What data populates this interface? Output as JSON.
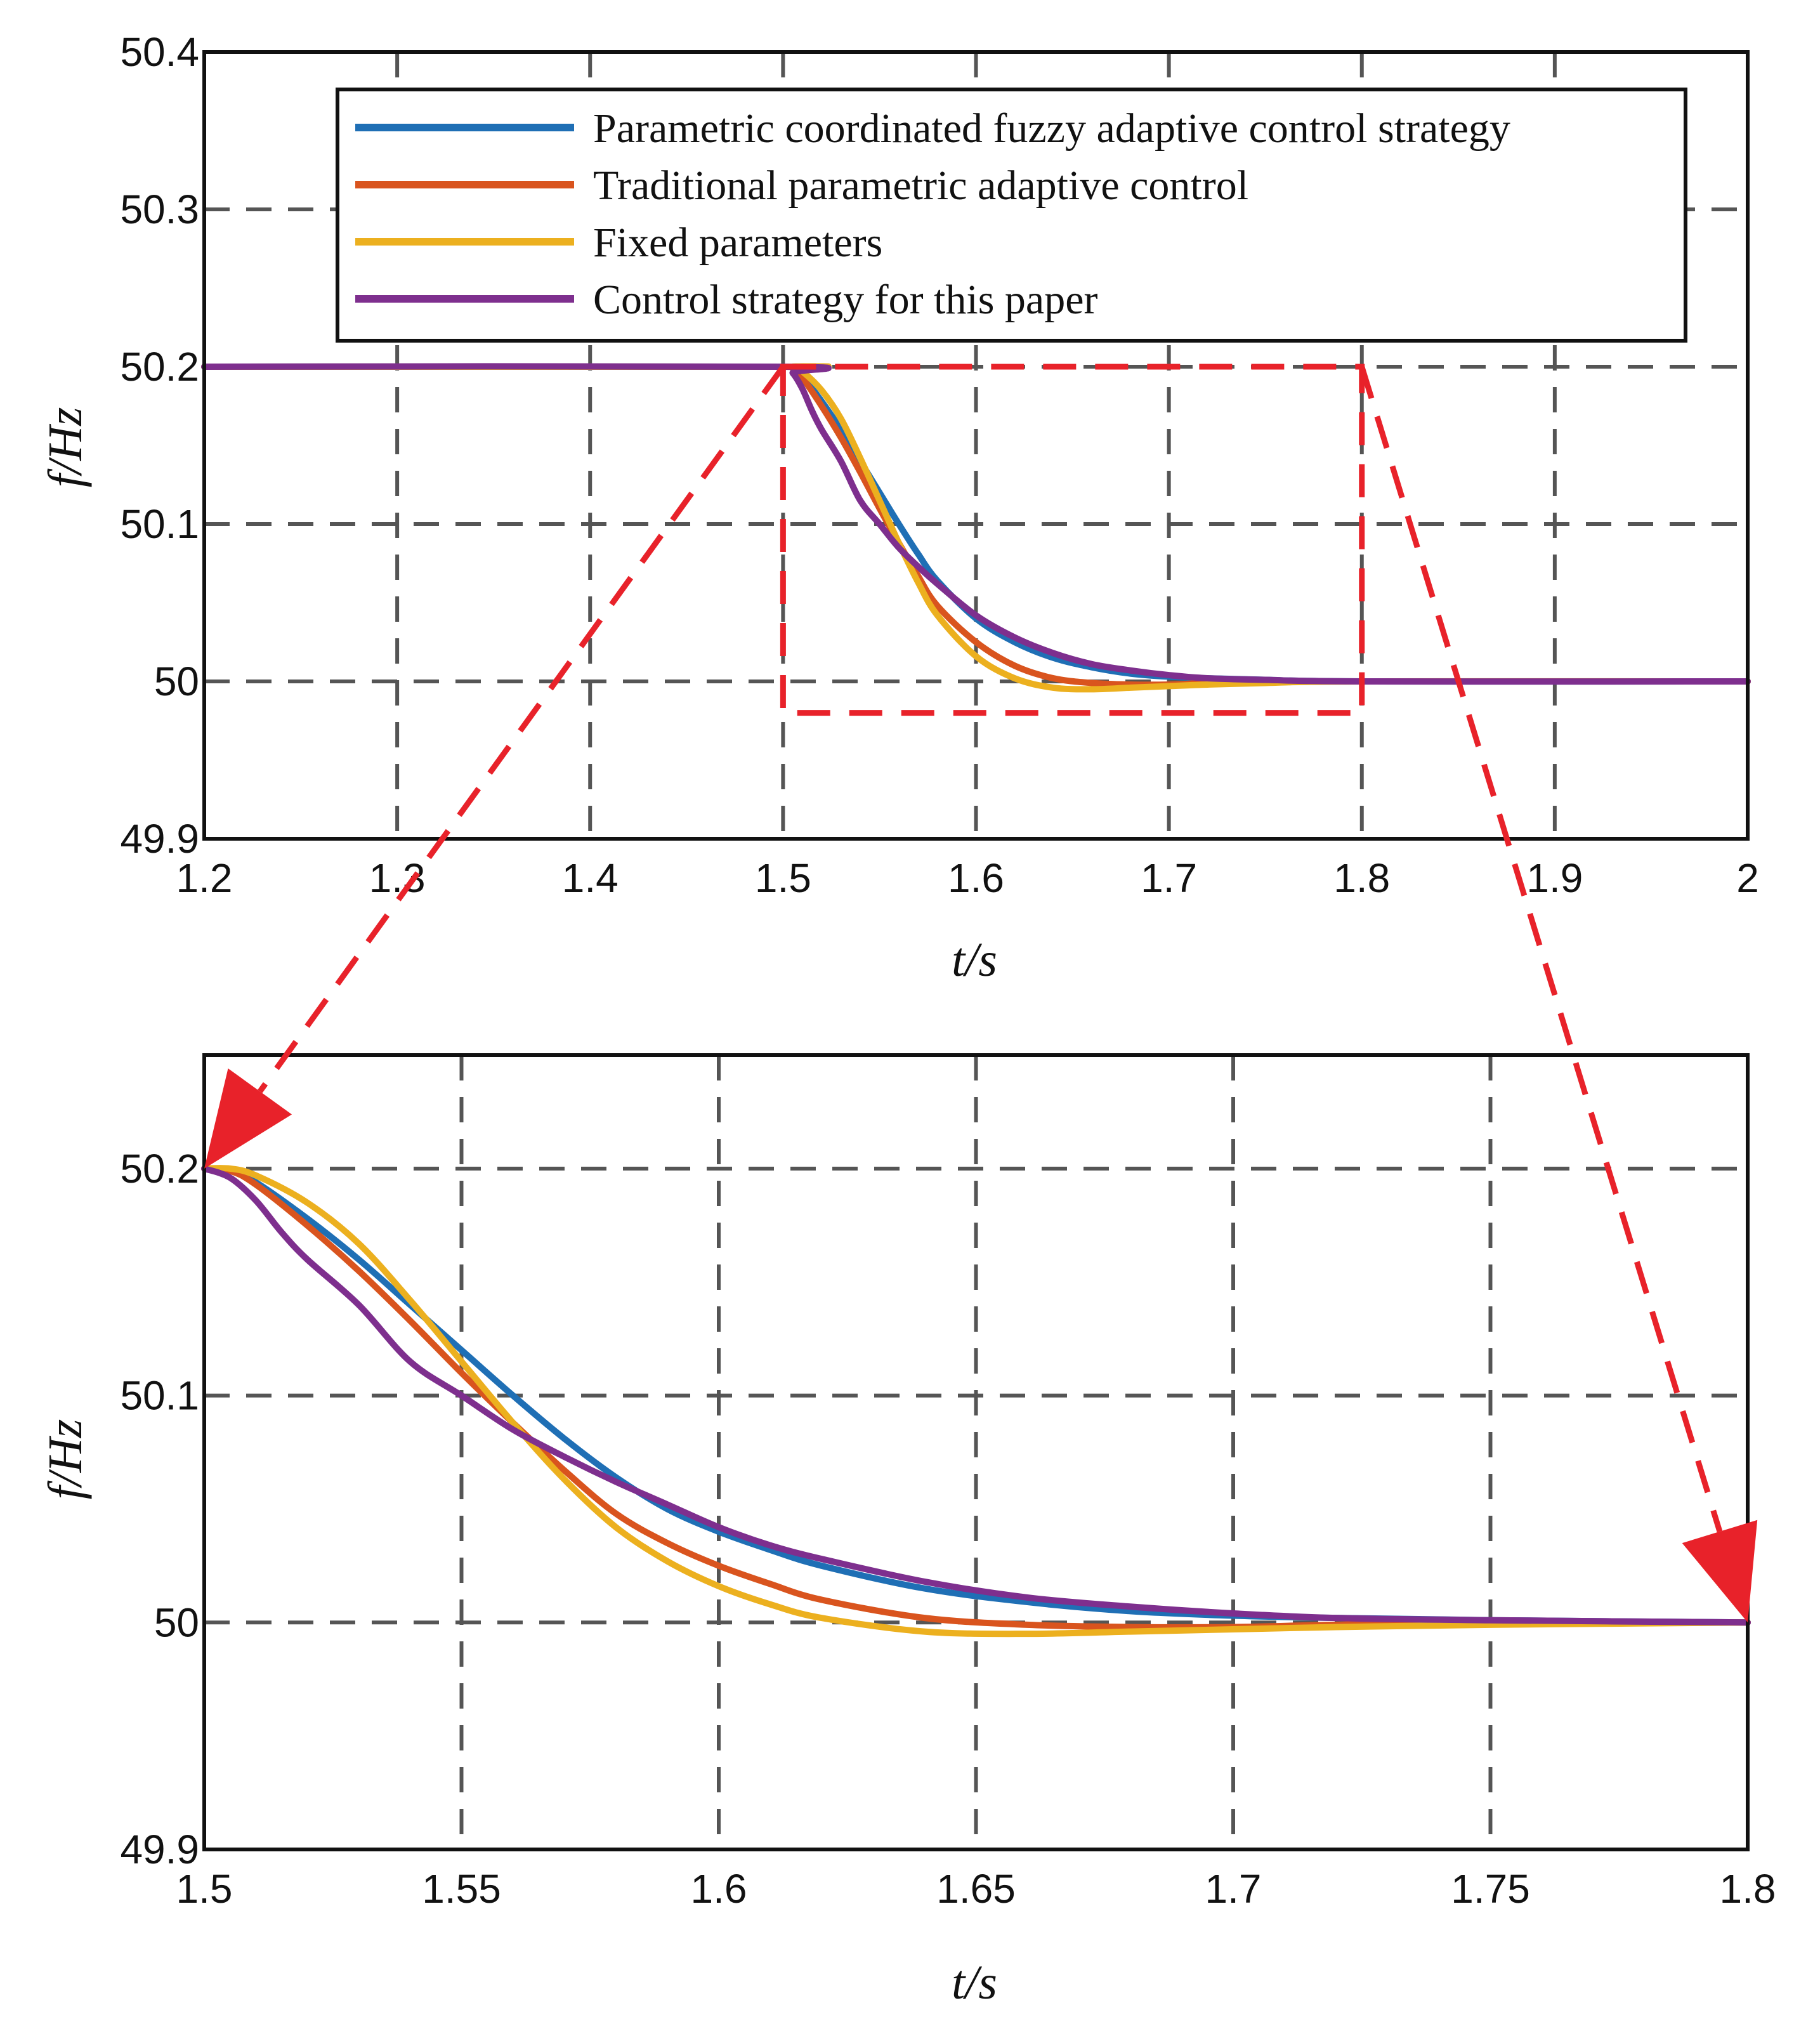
{
  "chart_data": [
    {
      "type": "line",
      "title": "",
      "xlabel": "t/s",
      "ylabel": "f/Hz",
      "xlim": [
        1.2,
        2.0
      ],
      "ylim": [
        49.9,
        50.4
      ],
      "xticks": [
        "1.2",
        "1.3",
        "1.4",
        "1.5",
        "1.6",
        "1.7",
        "1.8",
        "1.9",
        "2"
      ],
      "yticks": [
        "49.9",
        "50",
        "50.1",
        "50.2",
        "50.3",
        "50.4"
      ],
      "grid": true,
      "legend_position": "top",
      "series": [
        {
          "name": "Parametric coordinated fuzzy adaptive control strategy",
          "color": "#1f6fb5",
          "x": [
            1.2,
            1.5,
            1.505,
            1.51,
            1.52,
            1.53,
            1.54,
            1.55,
            1.56,
            1.57,
            1.58,
            1.6,
            1.62,
            1.64,
            1.66,
            1.68,
            1.7,
            1.72,
            1.75,
            1.8,
            2.0
          ],
          "y": [
            50.2,
            50.2,
            50.199,
            50.194,
            50.178,
            50.16,
            50.14,
            50.12,
            50.1,
            50.081,
            50.064,
            50.04,
            50.025,
            50.015,
            50.009,
            50.005,
            50.003,
            50.002,
            50.001,
            50.0,
            50.0
          ]
        },
        {
          "name": "Traditional parametric adaptive control",
          "color": "#d9541e",
          "x": [
            1.2,
            1.5,
            1.505,
            1.51,
            1.52,
            1.53,
            1.54,
            1.55,
            1.56,
            1.57,
            1.58,
            1.6,
            1.62,
            1.64,
            1.66,
            1.68,
            1.7,
            1.72,
            1.75,
            1.8,
            2.0
          ],
          "y": [
            50.2,
            50.2,
            50.199,
            50.193,
            50.175,
            50.155,
            50.133,
            50.11,
            50.088,
            50.067,
            50.048,
            50.025,
            50.01,
            50.002,
            49.999,
            49.998,
            49.998,
            49.999,
            50.0,
            50.0,
            50.0
          ]
        },
        {
          "name": "Fixed parameters",
          "color": "#ecb01f",
          "x": [
            1.2,
            1.5,
            1.505,
            1.51,
            1.52,
            1.53,
            1.54,
            1.55,
            1.56,
            1.57,
            1.58,
            1.6,
            1.62,
            1.64,
            1.66,
            1.68,
            1.7,
            1.72,
            1.75,
            1.8,
            2.0
          ],
          "y": [
            50.2,
            50.2,
            50.2,
            50.197,
            50.185,
            50.167,
            50.142,
            50.115,
            50.088,
            50.063,
            50.042,
            50.016,
            50.002,
            49.996,
            49.995,
            49.996,
            49.997,
            49.998,
            49.999,
            50.0,
            50.0
          ]
        },
        {
          "name": "Control strategy for this paper",
          "color": "#7e2f8e",
          "x": [
            1.2,
            1.5,
            1.505,
            1.51,
            1.515,
            1.52,
            1.53,
            1.54,
            1.55,
            1.56,
            1.57,
            1.58,
            1.6,
            1.62,
            1.64,
            1.66,
            1.68,
            1.7,
            1.72,
            1.75,
            1.8,
            2.0
          ],
          "y": [
            50.2,
            50.2,
            50.196,
            50.186,
            50.172,
            50.16,
            50.14,
            50.115,
            50.1,
            50.085,
            50.073,
            50.062,
            50.042,
            50.028,
            50.018,
            50.011,
            50.007,
            50.004,
            50.002,
            50.001,
            50.0,
            50.0
          ]
        }
      ]
    },
    {
      "type": "line",
      "title": "",
      "xlabel": "t/s",
      "ylabel": "f/Hz",
      "xlim": [
        1.5,
        1.8
      ],
      "ylim": [
        49.9,
        50.25
      ],
      "xticks": [
        "1.5",
        "1.55",
        "1.6",
        "1.65",
        "1.7",
        "1.75",
        "1.8"
      ],
      "yticks": [
        "49.9",
        "50",
        "50.1",
        "50.2"
      ],
      "grid": true,
      "series": [
        {
          "name": "Parametric coordinated fuzzy adaptive control strategy",
          "color": "#1f6fb5",
          "x": [
            1.5,
            1.505,
            1.51,
            1.52,
            1.53,
            1.54,
            1.55,
            1.56,
            1.57,
            1.58,
            1.59,
            1.6,
            1.61,
            1.62,
            1.64,
            1.66,
            1.68,
            1.7,
            1.72,
            1.75,
            1.8
          ],
          "y": [
            50.2,
            50.199,
            50.194,
            50.178,
            50.16,
            50.14,
            50.12,
            50.1,
            50.081,
            50.064,
            50.05,
            50.04,
            50.032,
            50.025,
            50.015,
            50.009,
            50.005,
            50.003,
            50.002,
            50.001,
            50.0
          ]
        },
        {
          "name": "Traditional parametric adaptive control",
          "color": "#d9541e",
          "x": [
            1.5,
            1.505,
            1.51,
            1.52,
            1.53,
            1.54,
            1.55,
            1.56,
            1.57,
            1.58,
            1.59,
            1.6,
            1.61,
            1.62,
            1.64,
            1.66,
            1.68,
            1.7,
            1.72,
            1.75,
            1.8
          ],
          "y": [
            50.2,
            50.199,
            50.193,
            50.175,
            50.155,
            50.133,
            50.11,
            50.088,
            50.067,
            50.048,
            50.035,
            50.025,
            50.017,
            50.01,
            50.002,
            49.999,
            49.998,
            49.998,
            49.999,
            50.0,
            50.0
          ]
        },
        {
          "name": "Fixed parameters",
          "color": "#ecb01f",
          "x": [
            1.5,
            1.505,
            1.51,
            1.52,
            1.53,
            1.54,
            1.55,
            1.56,
            1.57,
            1.58,
            1.59,
            1.6,
            1.61,
            1.62,
            1.64,
            1.66,
            1.68,
            1.7,
            1.72,
            1.75,
            1.8
          ],
          "y": [
            50.2,
            50.2,
            50.197,
            50.185,
            50.167,
            50.142,
            50.115,
            50.088,
            50.063,
            50.042,
            50.027,
            50.016,
            50.008,
            50.002,
            49.996,
            49.995,
            49.996,
            49.997,
            49.998,
            49.999,
            50.0
          ]
        },
        {
          "name": "Control strategy for this paper",
          "color": "#7e2f8e",
          "x": [
            1.5,
            1.505,
            1.51,
            1.515,
            1.52,
            1.53,
            1.54,
            1.55,
            1.56,
            1.57,
            1.58,
            1.59,
            1.6,
            1.61,
            1.62,
            1.64,
            1.66,
            1.68,
            1.7,
            1.72,
            1.75,
            1.8
          ],
          "y": [
            50.2,
            50.196,
            50.186,
            50.172,
            50.16,
            50.14,
            50.115,
            50.1,
            50.085,
            50.073,
            50.062,
            50.052,
            50.042,
            50.034,
            50.028,
            50.018,
            50.011,
            50.007,
            50.004,
            50.002,
            50.001,
            50.0
          ]
        }
      ]
    }
  ],
  "zoom_window": {
    "x_range": [
      1.5,
      1.8
    ],
    "y_range": [
      49.98,
      50.2
    ],
    "color": "#e8222a"
  }
}
